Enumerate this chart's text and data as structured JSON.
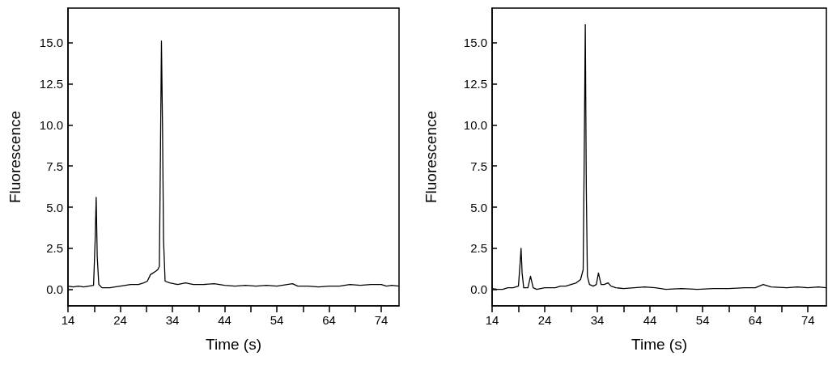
{
  "chart_data": [
    {
      "type": "line",
      "xlabel": "Time (s)",
      "ylabel": "Fluorescence",
      "x": [
        14,
        15,
        16,
        17,
        18,
        18.9,
        19.2,
        19.4,
        19.6,
        19.9,
        20.5,
        22,
        24,
        26,
        27.5,
        28.5,
        29.2,
        29.8,
        30.3,
        30.8,
        31.2,
        31.5,
        31.7,
        31.9,
        32.1,
        32.3,
        32.6,
        33.5,
        35,
        36.5,
        38,
        40,
        42,
        44,
        46,
        48,
        50,
        52,
        54,
        56,
        57,
        58,
        60,
        62,
        64,
        66,
        68,
        70,
        72,
        74,
        75,
        76,
        77.4
      ],
      "series": [
        {
          "color": "#000000",
          "values": [
            0.2,
            0.15,
            0.2,
            0.15,
            0.2,
            0.25,
            3.0,
            5.6,
            2.0,
            0.3,
            0.1,
            0.1,
            0.2,
            0.3,
            0.3,
            0.4,
            0.5,
            0.9,
            1.0,
            1.1,
            1.2,
            1.4,
            8.0,
            15.1,
            10.0,
            3.0,
            0.5,
            0.4,
            0.3,
            0.4,
            0.3,
            0.3,
            0.35,
            0.25,
            0.2,
            0.25,
            0.2,
            0.25,
            0.2,
            0.3,
            0.35,
            0.2,
            0.2,
            0.15,
            0.2,
            0.2,
            0.3,
            0.25,
            0.3,
            0.3,
            0.2,
            0.25,
            0.2
          ]
        }
      ],
      "xlim": [
        14,
        77.4
      ],
      "ylim": [
        -1.0,
        17.1
      ],
      "xticks": [
        14,
        {
          "value": 19,
          "label": null
        },
        24,
        {
          "value": 29,
          "label": null
        },
        34,
        {
          "value": 39,
          "label": null
        },
        44,
        {
          "value": 49,
          "label": null
        },
        54,
        {
          "value": 59,
          "label": null
        },
        64,
        {
          "value": 69,
          "label": null
        },
        74
      ],
      "yticks": [
        {
          "value": 0,
          "label": "0.0"
        },
        {
          "value": 2.5,
          "label": "2.5"
        },
        {
          "value": 5,
          "label": "5.0"
        },
        {
          "value": 7.5,
          "label": "7.5"
        },
        {
          "value": 10,
          "label": "10.0"
        },
        {
          "value": 12.5,
          "label": "12.5"
        },
        {
          "value": 15,
          "label": "15.0"
        }
      ],
      "grid": false,
      "marker": "none",
      "line_style": "solid"
    },
    {
      "type": "line",
      "xlabel": "Time (s)",
      "ylabel": "Fluorescence",
      "x": [
        14,
        15,
        16,
        17,
        18,
        19,
        19.3,
        19.5,
        19.7,
        20,
        20.8,
        21.3,
        21.8,
        22.5,
        24,
        26,
        27,
        28,
        29,
        30,
        30.8,
        31.3,
        31.5,
        31.7,
        31.9,
        32.1,
        32.5,
        33.2,
        33.8,
        34.2,
        34.7,
        35.3,
        36,
        36.6,
        37.5,
        39,
        41,
        43,
        45,
        47,
        50,
        53,
        56,
        59,
        62,
        64,
        65.5,
        67,
        70,
        72,
        74,
        76,
        77.5
      ],
      "series": [
        {
          "color": "#000000",
          "values": [
            0.05,
            0,
            0,
            0.1,
            0.1,
            0.2,
            1.5,
            2.5,
            1.0,
            0.1,
            0.1,
            0.8,
            0.1,
            0.0,
            0.1,
            0.1,
            0.2,
            0.2,
            0.3,
            0.4,
            0.6,
            1.2,
            8.0,
            16.1,
            6.0,
            0.8,
            0.3,
            0.2,
            0.3,
            1.0,
            0.3,
            0.3,
            0.4,
            0.2,
            0.1,
            0.05,
            0.1,
            0.15,
            0.1,
            0.0,
            0.05,
            0.0,
            0.05,
            0.05,
            0.1,
            0.1,
            0.3,
            0.15,
            0.1,
            0.15,
            0.1,
            0.15,
            0.1
          ]
        }
      ],
      "xlim": [
        14,
        77.5
      ],
      "ylim": [
        -1.0,
        17.1
      ],
      "xticks": [
        14,
        {
          "value": 19,
          "label": null
        },
        24,
        {
          "value": 29,
          "label": null
        },
        34,
        {
          "value": 39,
          "label": null
        },
        44,
        {
          "value": 49,
          "label": null
        },
        54,
        {
          "value": 59,
          "label": null
        },
        64,
        {
          "value": 69,
          "label": null
        },
        74
      ],
      "yticks": [
        {
          "value": 0,
          "label": "0.0"
        },
        {
          "value": 2.5,
          "label": "2.5"
        },
        {
          "value": 5,
          "label": "5.0"
        },
        {
          "value": 7.5,
          "label": "7.5"
        },
        {
          "value": 10,
          "label": "10.0"
        },
        {
          "value": 12.5,
          "label": "12.5"
        },
        {
          "value": 15,
          "label": "15.0"
        }
      ],
      "grid": false,
      "marker": "none",
      "line_style": "solid"
    }
  ]
}
